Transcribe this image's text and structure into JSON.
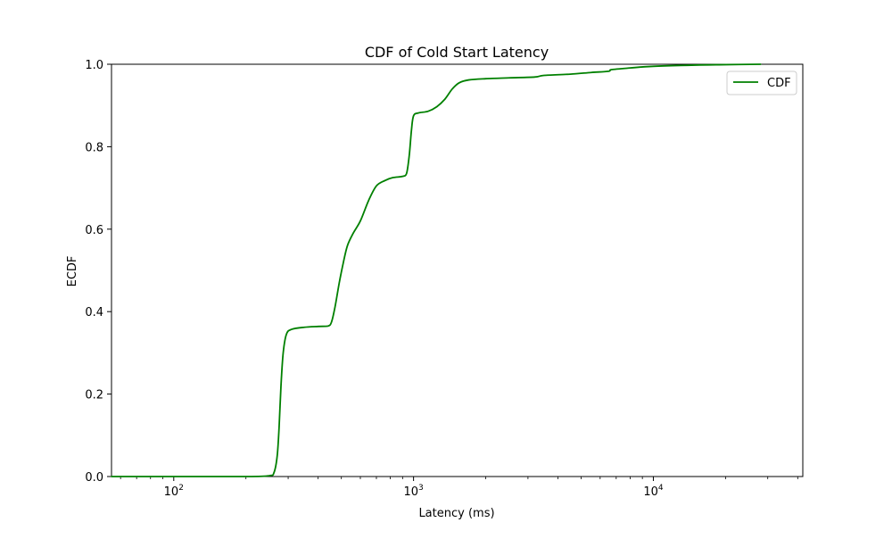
{
  "chart_data": {
    "type": "line",
    "title": "CDF of Cold Start Latency",
    "xlabel": "Latency (ms)",
    "ylabel": "ECDF",
    "xscale": "log",
    "xlim": [
      55,
      42000
    ],
    "ylim": [
      0.0,
      1.0
    ],
    "grid": false,
    "legend_position": "top-right",
    "x_ticks": [
      {
        "base": "10",
        "exp": "2",
        "value": 100
      },
      {
        "base": "10",
        "exp": "3",
        "value": 1000
      },
      {
        "base": "10",
        "exp": "4",
        "value": 10000
      }
    ],
    "y_ticks": [
      {
        "label": "0.0",
        "value": 0.0
      },
      {
        "label": "0.2",
        "value": 0.2
      },
      {
        "label": "0.4",
        "value": 0.4
      },
      {
        "label": "0.6",
        "value": 0.6
      },
      {
        "label": "0.8",
        "value": 0.8
      },
      {
        "label": "1.0",
        "value": 1.0
      }
    ],
    "series": [
      {
        "name": "CDF",
        "color": "#008000",
        "points": [
          [
            55,
            0.0
          ],
          [
            100,
            0.0
          ],
          [
            200,
            0.0
          ],
          [
            250,
            0.002
          ],
          [
            262,
            0.01
          ],
          [
            270,
            0.05
          ],
          [
            275,
            0.12
          ],
          [
            280,
            0.22
          ],
          [
            286,
            0.3
          ],
          [
            295,
            0.345
          ],
          [
            310,
            0.357
          ],
          [
            350,
            0.362
          ],
          [
            400,
            0.364
          ],
          [
            440,
            0.365
          ],
          [
            455,
            0.375
          ],
          [
            470,
            0.41
          ],
          [
            490,
            0.47
          ],
          [
            510,
            0.52
          ],
          [
            530,
            0.56
          ],
          [
            560,
            0.59
          ],
          [
            600,
            0.62
          ],
          [
            650,
            0.67
          ],
          [
            700,
            0.705
          ],
          [
            760,
            0.718
          ],
          [
            820,
            0.725
          ],
          [
            900,
            0.728
          ],
          [
            935,
            0.735
          ],
          [
            960,
            0.78
          ],
          [
            980,
            0.84
          ],
          [
            1000,
            0.875
          ],
          [
            1050,
            0.882
          ],
          [
            1150,
            0.886
          ],
          [
            1250,
            0.897
          ],
          [
            1350,
            0.915
          ],
          [
            1450,
            0.94
          ],
          [
            1550,
            0.955
          ],
          [
            1700,
            0.962
          ],
          [
            2000,
            0.965
          ],
          [
            2500,
            0.967
          ],
          [
            3200,
            0.969
          ],
          [
            3500,
            0.973
          ],
          [
            4500,
            0.976
          ],
          [
            5500,
            0.98
          ],
          [
            6500,
            0.983
          ],
          [
            6700,
            0.987
          ],
          [
            8000,
            0.991
          ],
          [
            10000,
            0.995
          ],
          [
            15000,
            0.998
          ],
          [
            20000,
            0.999
          ],
          [
            28000,
            1.0
          ]
        ]
      }
    ]
  }
}
